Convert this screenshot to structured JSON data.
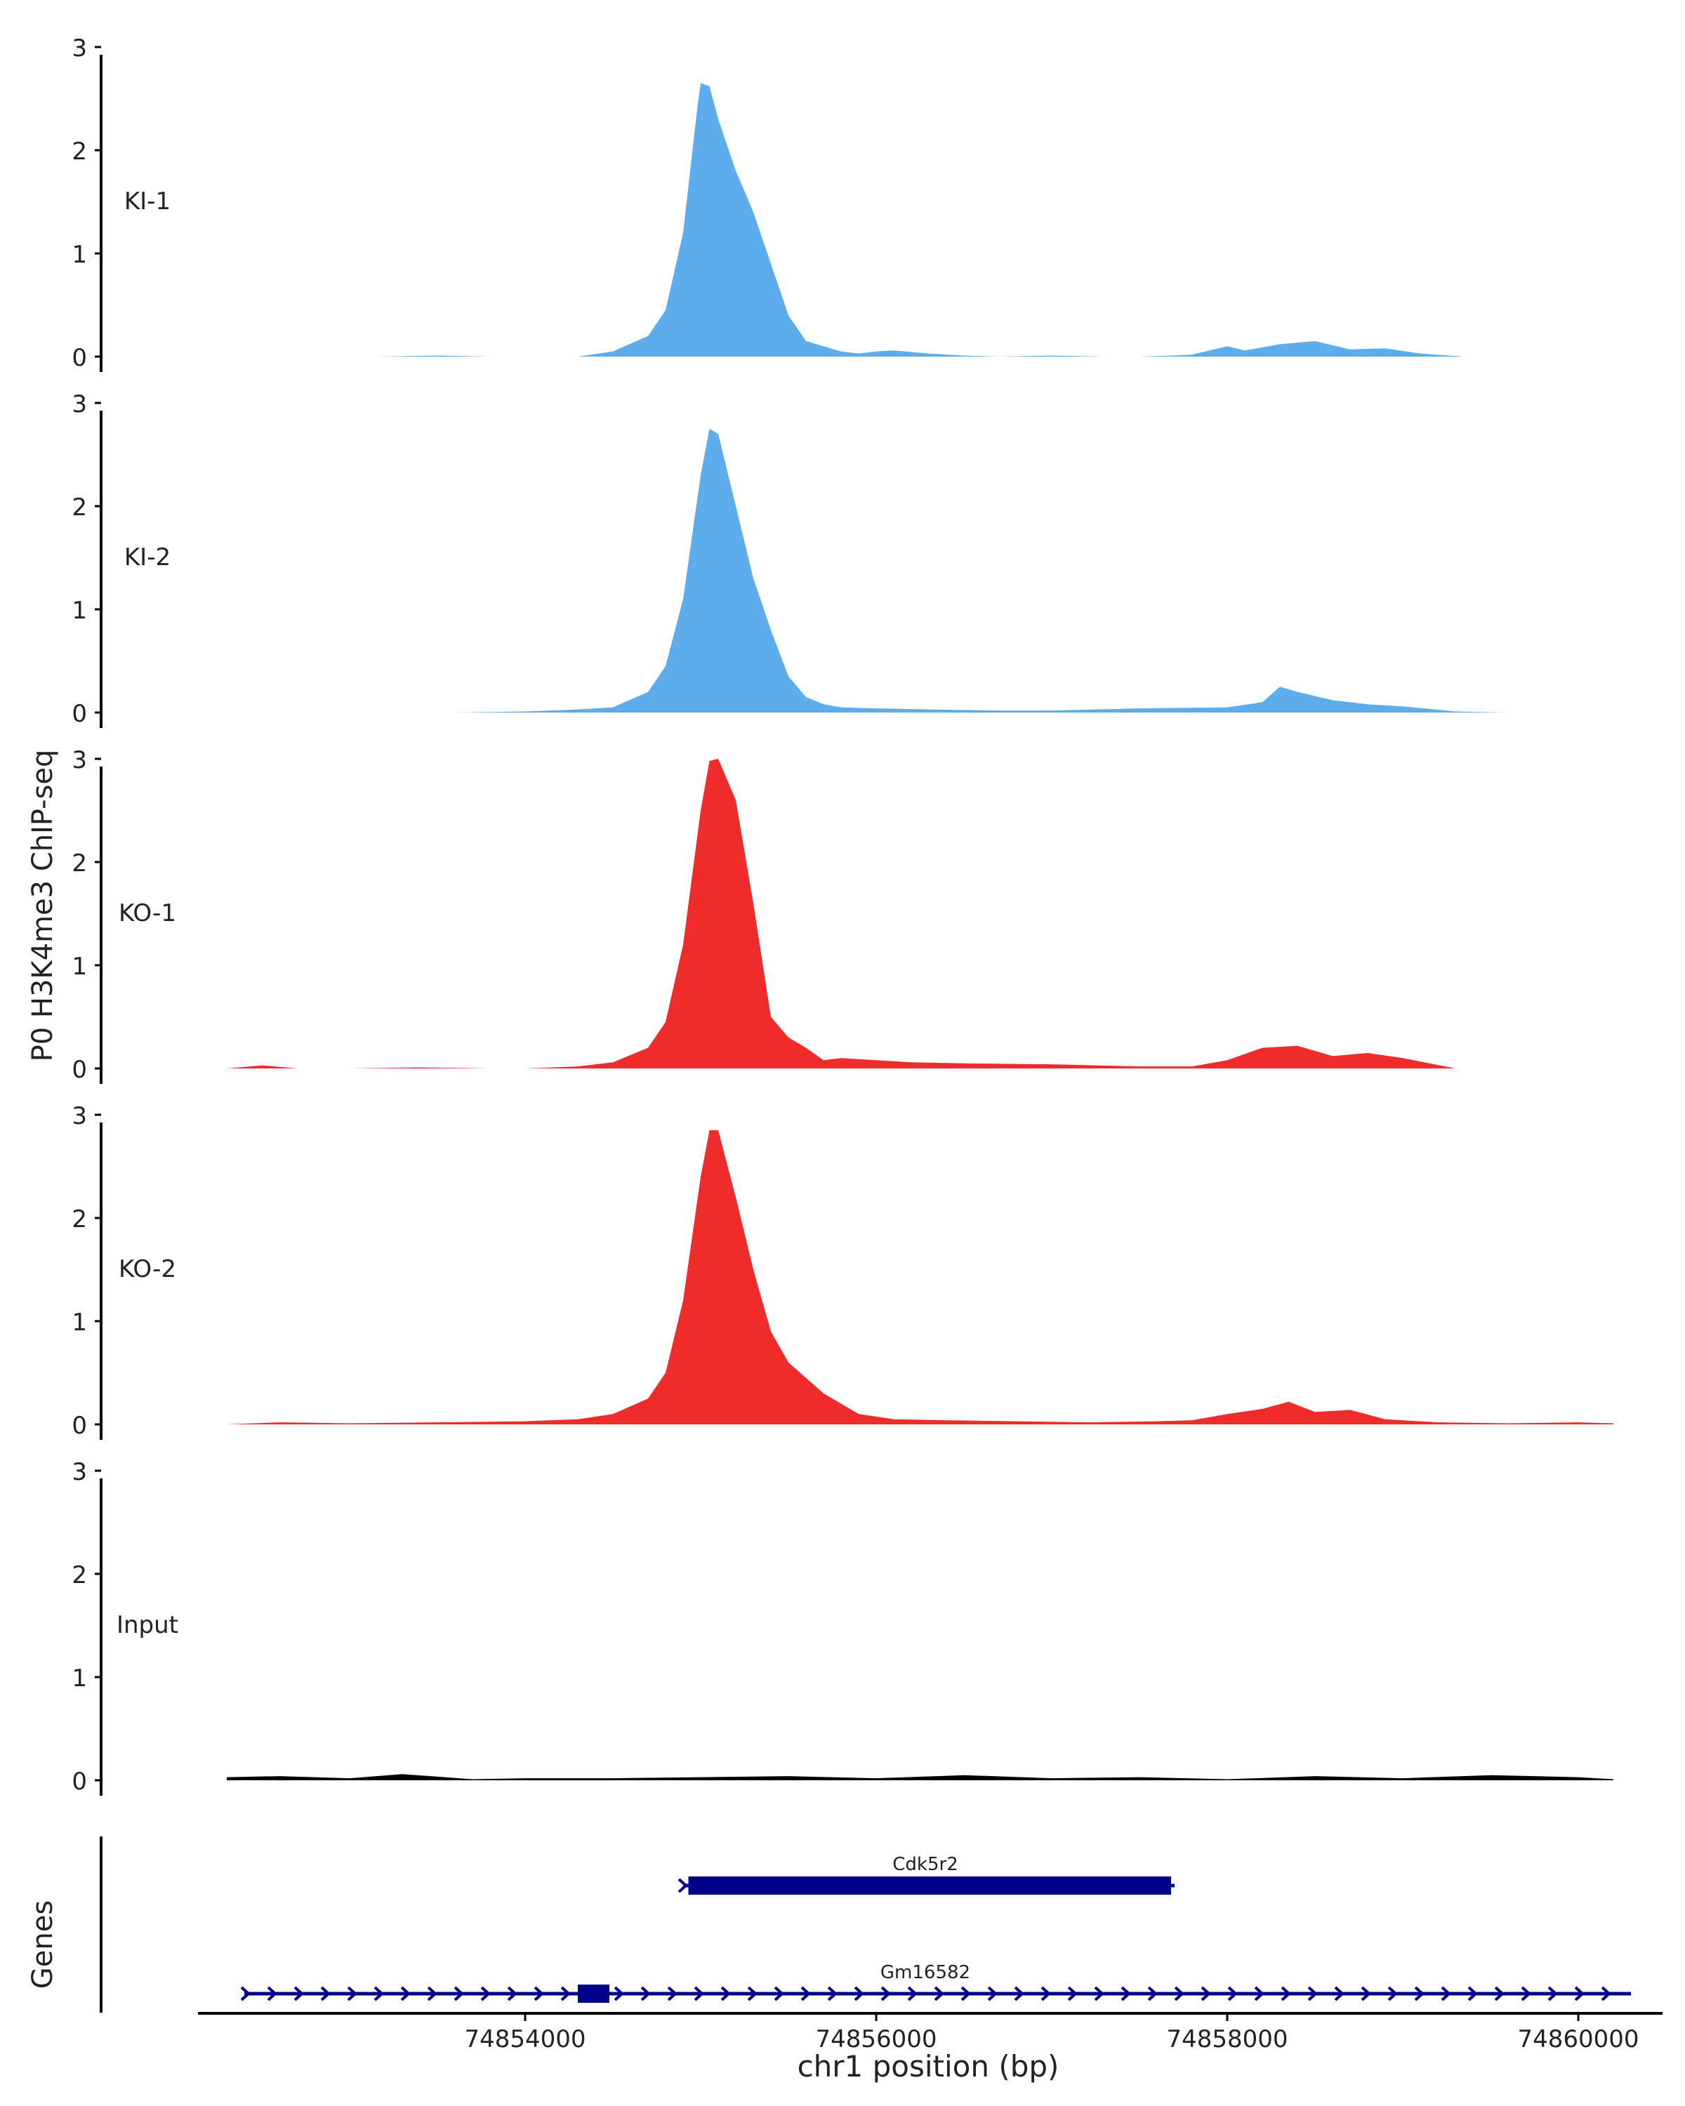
{
  "chart_data": {
    "type": "area",
    "ylabel": "P0 H3K4me3 ChIP-seq",
    "xlabel": "chr1 position (bp)",
    "xlim": [
      74852000,
      74860700
    ],
    "ylim": [
      0,
      3
    ],
    "yticks": [
      "0",
      "1",
      "2",
      "3"
    ],
    "xticks": [
      {
        "value": 74854000,
        "label": "74854000"
      },
      {
        "value": 74856000,
        "label": "74856000"
      },
      {
        "value": 74858000,
        "label": "74858000"
      },
      {
        "value": 74860000,
        "label": "74860000"
      }
    ],
    "tracks": [
      {
        "name": "KI-1",
        "color": "#5DADEC",
        "x": [
          74853150,
          74853500,
          74853800,
          74854150,
          74854300,
          74854500,
          74854700,
          74854800,
          74854900,
          74854980,
          74855000,
          74855050,
          74855100,
          74855200,
          74855300,
          74855400,
          74855500,
          74855600,
          74855700,
          74855800,
          74855900,
          74856000,
          74856100,
          74856300,
          74856500,
          74856700,
          74857000,
          74857300,
          74857500,
          74857700,
          74857800,
          74858000,
          74858100,
          74858300,
          74858500,
          74858700,
          74858900,
          74859100,
          74859350
        ],
        "y": [
          0,
          0.01,
          0,
          0,
          0,
          0.05,
          0.2,
          0.45,
          1.2,
          2.4,
          2.65,
          2.62,
          2.3,
          1.8,
          1.4,
          0.9,
          0.4,
          0.15,
          0.1,
          0.05,
          0.03,
          0.05,
          0.06,
          0.03,
          0.01,
          0,
          0.01,
          0,
          0,
          0.01,
          0.02,
          0.1,
          0.06,
          0.12,
          0.15,
          0.07,
          0.08,
          0.03,
          0
        ]
      },
      {
        "name": "KI-2",
        "color": "#5DADEC",
        "x": [
          74852800,
          74853200,
          74853600,
          74854000,
          74854300,
          74854500,
          74854700,
          74854800,
          74854900,
          74855000,
          74855050,
          74855100,
          74855200,
          74855300,
          74855400,
          74855500,
          74855600,
          74855700,
          74855800,
          74856000,
          74856300,
          74856700,
          74857000,
          74857500,
          74858000,
          74858200,
          74858300,
          74858400,
          74858600,
          74858800,
          74859000,
          74859300,
          74859600,
          74860000
        ],
        "y": [
          0,
          0,
          0,
          0.01,
          0.03,
          0.05,
          0.2,
          0.45,
          1.1,
          2.3,
          2.75,
          2.7,
          2.0,
          1.3,
          0.8,
          0.35,
          0.15,
          0.08,
          0.05,
          0.04,
          0.03,
          0.02,
          0.02,
          0.04,
          0.05,
          0.1,
          0.25,
          0.2,
          0.12,
          0.08,
          0.06,
          0.01,
          0,
          0
        ]
      },
      {
        "name": "KO-1",
        "color": "#EE2C2C",
        "x": [
          74852300,
          74852500,
          74852700,
          74853000,
          74853400,
          74853800,
          74854000,
          74854300,
          74854500,
          74854700,
          74854800,
          74854900,
          74855000,
          74855050,
          74855100,
          74855200,
          74855300,
          74855400,
          74855500,
          74855600,
          74855700,
          74855800,
          74856000,
          74856200,
          74856500,
          74857000,
          74857500,
          74857800,
          74858000,
          74858200,
          74858400,
          74858600,
          74858800,
          74859000,
          74859300
        ],
        "y": [
          0,
          0.03,
          0,
          0,
          0.01,
          0,
          0,
          0.02,
          0.06,
          0.2,
          0.45,
          1.2,
          2.5,
          2.98,
          3.0,
          2.6,
          1.6,
          0.5,
          0.3,
          0.2,
          0.08,
          0.1,
          0.08,
          0.06,
          0.05,
          0.04,
          0.02,
          0.02,
          0.08,
          0.2,
          0.22,
          0.12,
          0.15,
          0.1,
          0
        ]
      },
      {
        "name": "KO-2",
        "color": "#EE2C2C",
        "x": [
          74852300,
          74852600,
          74853000,
          74853500,
          74854000,
          74854300,
          74854500,
          74854700,
          74854800,
          74854900,
          74855000,
          74855050,
          74855100,
          74855200,
          74855300,
          74855400,
          74855500,
          74855700,
          74855900,
          74856100,
          74856400,
          74856800,
          74857200,
          74857600,
          74857800,
          74858000,
          74858200,
          74858350,
          74858500,
          74858700,
          74858900,
          74859200,
          74859600,
          74860000,
          74860200
        ],
        "y": [
          0,
          0.02,
          0.01,
          0.02,
          0.03,
          0.05,
          0.1,
          0.25,
          0.5,
          1.2,
          2.4,
          2.85,
          2.85,
          2.2,
          1.5,
          0.9,
          0.6,
          0.3,
          0.1,
          0.05,
          0.04,
          0.03,
          0.02,
          0.03,
          0.04,
          0.1,
          0.15,
          0.22,
          0.12,
          0.14,
          0.05,
          0.02,
          0.01,
          0.02,
          0.01
        ]
      },
      {
        "name": "Input",
        "color": "#000000",
        "x": [
          74852300,
          74852600,
          74853000,
          74853300,
          74853700,
          74854000,
          74854500,
          74855000,
          74855500,
          74856000,
          74856500,
          74857000,
          74857500,
          74858000,
          74858500,
          74859000,
          74859500,
          74860000,
          74860200
        ],
        "y": [
          0.03,
          0.04,
          0.02,
          0.06,
          0.01,
          0.02,
          0.02,
          0.03,
          0.04,
          0.02,
          0.05,
          0.02,
          0.03,
          0.01,
          0.04,
          0.02,
          0.05,
          0.03,
          0.01
        ]
      }
    ],
    "genes_label": "Genes",
    "genes": [
      {
        "name": "Cdk5r2",
        "start": 74854900,
        "end": 74857700,
        "exons": [
          [
            74854930,
            74857680
          ]
        ]
      },
      {
        "name": "Gm16582",
        "start": 74852400,
        "end": 74860300,
        "exons": [
          [
            74854300,
            74854480
          ]
        ]
      }
    ],
    "gene_color": "#00008B"
  }
}
